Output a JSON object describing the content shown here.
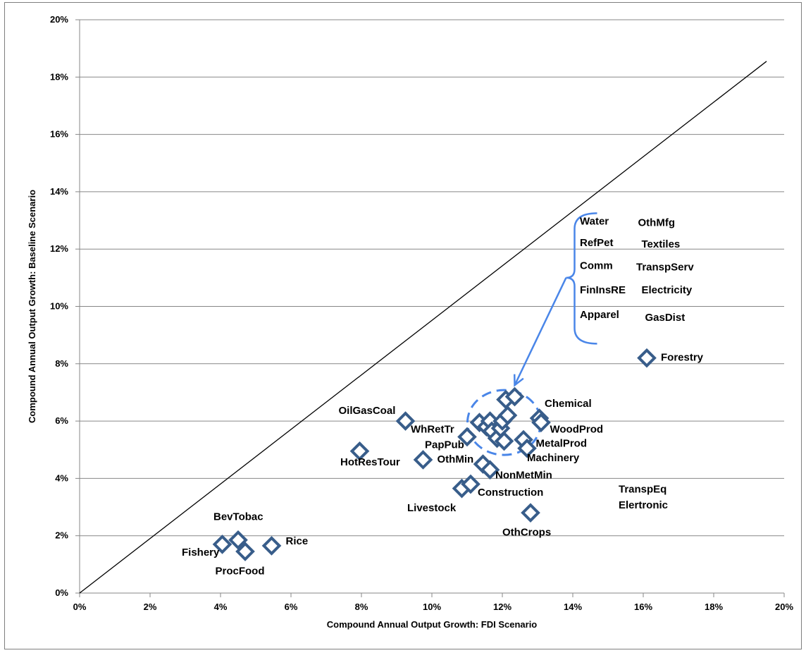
{
  "chart_data": {
    "type": "scatter",
    "title": "",
    "xlabel": "Compound Annual Output Growth: FDI Scenario",
    "ylabel": "Compound Annual Output Growth: Baseline Scenario",
    "xlim": [
      0,
      20
    ],
    "ylim": [
      0,
      20
    ],
    "x_ticks": [
      "0%",
      "2%",
      "4%",
      "6%",
      "8%",
      "10%",
      "12%",
      "14%",
      "16%",
      "18%",
      "20%"
    ],
    "y_ticks": [
      "0%",
      "2%",
      "4%",
      "6%",
      "8%",
      "10%",
      "12%",
      "14%",
      "16%",
      "18%",
      "20%"
    ],
    "grid": "horizontal",
    "diagonal_line": {
      "from": [
        0,
        0
      ],
      "to": [
        19.5,
        18.55
      ]
    },
    "marker": "diamond",
    "marker_color": "#4f81bd",
    "marker_edge_color": "#385d8a",
    "points": [
      {
        "x": 4.05,
        "y": 1.7
      },
      {
        "x": 4.5,
        "y": 1.85
      },
      {
        "x": 4.7,
        "y": 1.45
      },
      {
        "x": 5.45,
        "y": 1.65
      },
      {
        "x": 7.95,
        "y": 4.95
      },
      {
        "x": 9.25,
        "y": 6.0
      },
      {
        "x": 9.75,
        "y": 4.65
      },
      {
        "x": 10.85,
        "y": 3.65
      },
      {
        "x": 11.1,
        "y": 3.8
      },
      {
        "x": 11.0,
        "y": 5.45
      },
      {
        "x": 11.35,
        "y": 5.95
      },
      {
        "x": 11.45,
        "y": 4.5
      },
      {
        "x": 11.55,
        "y": 5.8
      },
      {
        "x": 11.65,
        "y": 6.0
      },
      {
        "x": 11.65,
        "y": 4.3
      },
      {
        "x": 11.7,
        "y": 5.65
      },
      {
        "x": 11.85,
        "y": 5.4
      },
      {
        "x": 11.95,
        "y": 5.75
      },
      {
        "x": 12.0,
        "y": 6.0
      },
      {
        "x": 12.05,
        "y": 5.3
      },
      {
        "x": 12.1,
        "y": 6.75
      },
      {
        "x": 12.15,
        "y": 6.2
      },
      {
        "x": 12.35,
        "y": 6.85
      },
      {
        "x": 12.6,
        "y": 5.35
      },
      {
        "x": 12.7,
        "y": 5.05
      },
      {
        "x": 12.8,
        "y": 2.8
      },
      {
        "x": 13.05,
        "y": 6.1
      },
      {
        "x": 13.1,
        "y": 5.95
      },
      {
        "x": 16.1,
        "y": 8.2
      }
    ],
    "annotations": [
      {
        "text": "Fishery",
        "x": 2.9,
        "y": 1.3
      },
      {
        "text": "BevTobac",
        "x": 3.8,
        "y": 2.55
      },
      {
        "text": "ProcFood",
        "x": 3.85,
        "y": 0.65
      },
      {
        "text": "Rice",
        "x": 5.85,
        "y": 1.7
      },
      {
        "text": "HotResTour",
        "x": 7.4,
        "y": 4.45
      },
      {
        "text": "OilGasCoal",
        "x": 7.35,
        "y": 6.25
      },
      {
        "text": "WhRetTr",
        "x": 9.4,
        "y": 5.6
      },
      {
        "text": "PapPub",
        "x": 9.8,
        "y": 5.05
      },
      {
        "text": "OthMin",
        "x": 10.15,
        "y": 4.55
      },
      {
        "text": "Livestock",
        "x": 9.3,
        "y": 2.85
      },
      {
        "text": "Construction",
        "x": 11.3,
        "y": 3.4
      },
      {
        "text": "NonMetMin",
        "x": 11.8,
        "y": 4.0
      },
      {
        "text": "OthCrops",
        "x": 12.0,
        "y": 2.0
      },
      {
        "text": "Machinery",
        "x": 12.7,
        "y": 4.6
      },
      {
        "text": "MetalProd",
        "x": 12.95,
        "y": 5.1
      },
      {
        "text": "WoodProd",
        "x": 13.35,
        "y": 5.6
      },
      {
        "text": "Chemical",
        "x": 13.2,
        "y": 6.5
      },
      {
        "text": "Forestry",
        "x": 16.5,
        "y": 8.1
      },
      {
        "text": "TranspEq",
        "x": 15.3,
        "y": 3.5
      },
      {
        "text": "Elertronic",
        "x": 15.3,
        "y": 2.95
      },
      {
        "text": "Water",
        "x": 14.2,
        "y": 12.85
      },
      {
        "text": "RefPet",
        "x": 14.2,
        "y": 12.1
      },
      {
        "text": "Comm",
        "x": 14.2,
        "y": 11.3
      },
      {
        "text": "FinInsRE",
        "x": 14.2,
        "y": 10.45
      },
      {
        "text": "Apparel",
        "x": 14.2,
        "y": 9.6
      },
      {
        "text": "OthMfg",
        "x": 15.85,
        "y": 12.8
      },
      {
        "text": "Textiles",
        "x": 15.95,
        "y": 12.05
      },
      {
        "text": "TranspServ",
        "x": 15.8,
        "y": 11.25
      },
      {
        "text": "Electricity",
        "x": 15.95,
        "y": 10.45
      },
      {
        "text": "GasDist",
        "x": 16.05,
        "y": 9.5
      }
    ],
    "callout_color": "#4a86e8"
  }
}
